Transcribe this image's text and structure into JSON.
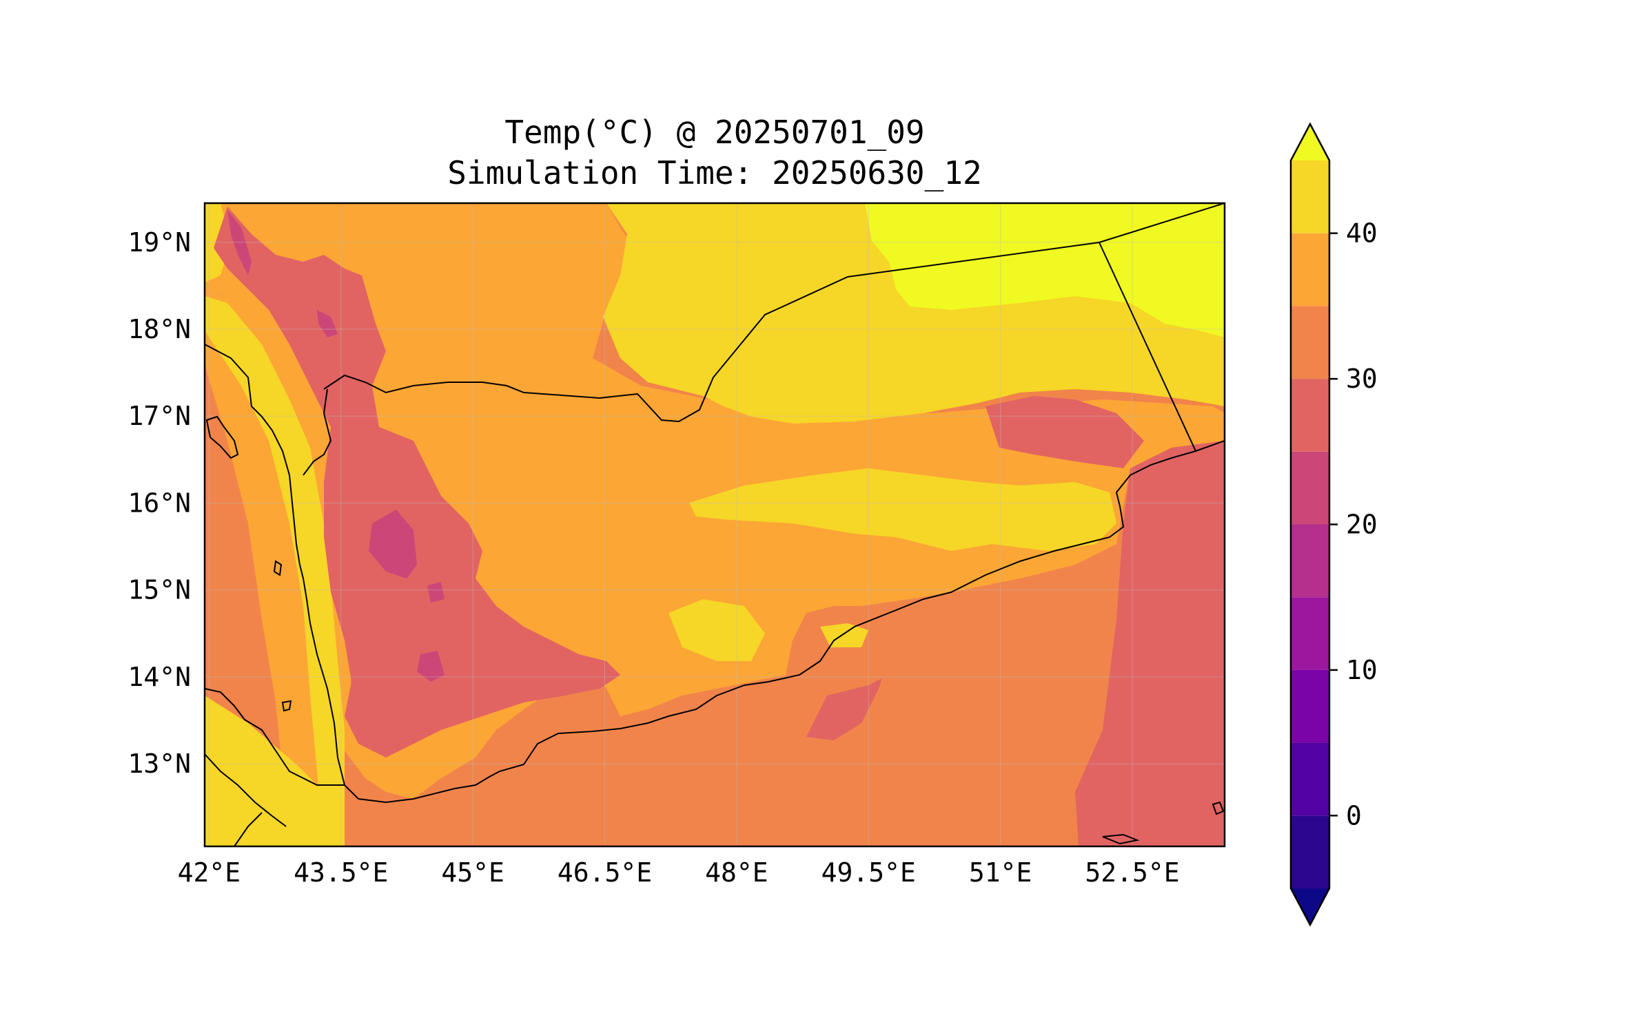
{
  "title": {
    "line1": "Temp(°C) @ 20250701_09",
    "line2": "Simulation Time: 20250630_12"
  },
  "map": {
    "lon_range": [
      41.95,
      53.55
    ],
    "lat_range": [
      12.05,
      19.45
    ],
    "lon_ticks": [
      {
        "value": 42.0,
        "label": "42°E"
      },
      {
        "value": 43.5,
        "label": "43.5°E"
      },
      {
        "value": 45.0,
        "label": "45°E"
      },
      {
        "value": 46.5,
        "label": "46.5°E"
      },
      {
        "value": 48.0,
        "label": "48°E"
      },
      {
        "value": 49.5,
        "label": "49.5°E"
      },
      {
        "value": 51.0,
        "label": "51°E"
      },
      {
        "value": 52.5,
        "label": "52.5°E"
      }
    ],
    "lat_ticks": [
      {
        "value": 19,
        "label": "19°N"
      },
      {
        "value": 18,
        "label": "18°N"
      },
      {
        "value": 17,
        "label": "17°N"
      },
      {
        "value": 16,
        "label": "16°N"
      },
      {
        "value": 15,
        "label": "15°N"
      },
      {
        "value": 14,
        "label": "14°N"
      },
      {
        "value": 13,
        "label": "13°N"
      }
    ],
    "gridlines": true
  },
  "colorbar": {
    "levels": [
      -5,
      0,
      5,
      10,
      15,
      20,
      25,
      30,
      35,
      40,
      45
    ],
    "ticks": [
      {
        "value": 0,
        "label": "0"
      },
      {
        "value": 10,
        "label": "10"
      },
      {
        "value": 20,
        "label": "20"
      },
      {
        "value": 30,
        "label": "30"
      },
      {
        "value": 40,
        "label": "40"
      }
    ],
    "colors": [
      "#0d0887",
      "#2c068f",
      "#5302a3",
      "#7a04a8",
      "#9c179e",
      "#b52f8c",
      "#cc4778",
      "#e16462",
      "#f1844b",
      "#fca636",
      "#f6d626",
      "#f0f921"
    ],
    "extend": "both"
  }
}
